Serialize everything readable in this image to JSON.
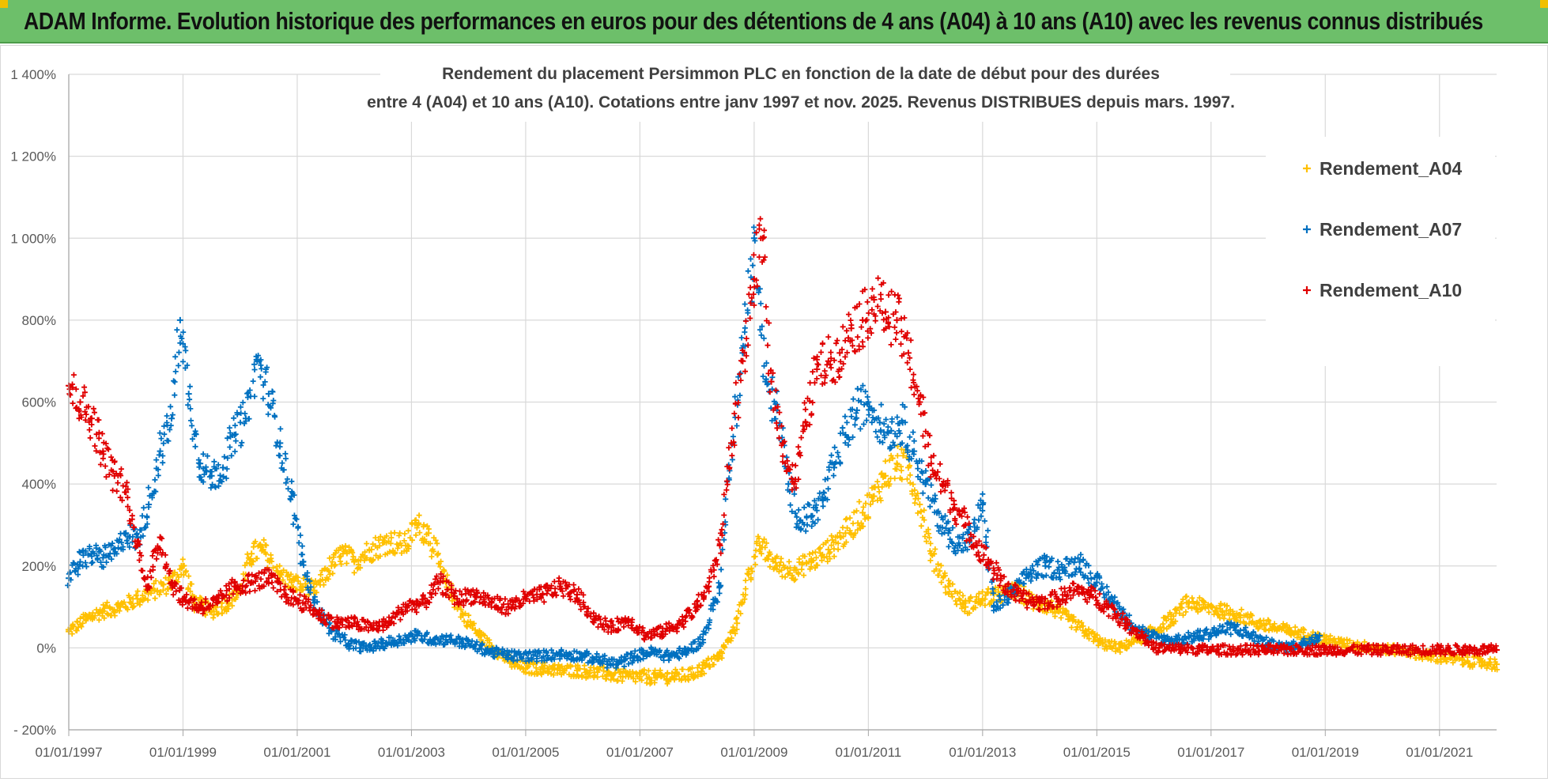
{
  "banner": {
    "title": "ADAM Informe. Evolution historique des performances en euros pour des détentions de 4 ans (A04) à 10 ans (A10) avec les revenus connus distribués"
  },
  "chart_data": {
    "type": "scatter",
    "title_line1": "Rendement du placement Persimmon PLC en fonction de la date de début pour des durées",
    "title_line2": "entre 4 (A04) et 10 ans (A10).  Cotations entre janv 1997 et nov. 2025. Revenus DISTRIBUES depuis mars. 1997.",
    "ylim": [
      -200,
      1400
    ],
    "yticks": [
      -200,
      0,
      200,
      400,
      600,
      800,
      1000,
      1200,
      1400
    ],
    "ytick_labels": [
      "- 200%",
      "0%",
      "200%",
      "400%",
      "600%",
      "800%",
      "1 000%",
      "1 200%",
      "1 400%"
    ],
    "xlim": [
      1997.0,
      2022.0
    ],
    "xticks": [
      1997,
      1999,
      2001,
      2003,
      2005,
      2007,
      2009,
      2011,
      2013,
      2015,
      2017,
      2019,
      2021
    ],
    "xtick_labels": [
      "01/01/1997",
      "01/01/1999",
      "01/01/2001",
      "01/01/2003",
      "01/01/2005",
      "01/01/2007",
      "01/01/2009",
      "01/01/2011",
      "01/01/2013",
      "01/01/2015",
      "01/01/2017",
      "01/01/2019",
      "01/01/2021"
    ],
    "grid": true,
    "legend_position": "top-right",
    "series": [
      {
        "name": "Rendement_A04",
        "color": "#ffc000",
        "x": [
          1997.0,
          1997.3,
          1997.6,
          1997.9,
          1998.2,
          1998.5,
          1998.8,
          1999.0,
          1999.2,
          1999.5,
          1999.8,
          2000.0,
          2000.2,
          2000.4,
          2000.7,
          2000.9,
          2001.1,
          2001.3,
          2001.6,
          2001.8,
          2002.0,
          2002.3,
          2002.6,
          2002.9,
          2003.1,
          2003.3,
          2003.6,
          2003.9,
          2004.2,
          2004.5,
          2004.8,
          2005.0,
          2005.3,
          2005.6,
          2005.9,
          2006.2,
          2006.5,
          2006.8,
          2007.0,
          2007.3,
          2007.6,
          2007.9,
          2008.1,
          2008.4,
          2008.7,
          2008.9,
          2009.1,
          2009.4,
          2009.7,
          2010.0,
          2010.3,
          2010.6,
          2010.9,
          2011.1,
          2011.3,
          2011.5,
          2011.7,
          2011.9,
          2012.1,
          2012.4,
          2012.7,
          2013.0,
          2013.3,
          2013.6,
          2013.9,
          2014.2,
          2014.5,
          2014.8,
          2015.1,
          2015.4,
          2015.7,
          2016.0,
          2016.3,
          2016.6,
          2016.9,
          2017.2,
          2017.5,
          2017.8,
          2018.1,
          2018.4,
          2018.7,
          2019.0,
          2019.3,
          2019.6,
          2019.9,
          2020.2,
          2020.5,
          2020.8,
          2021.1,
          2021.4,
          2021.7,
          2022.0
        ],
        "y": [
          40,
          70,
          90,
          100,
          120,
          140,
          160,
          200,
          110,
          90,
          110,
          140,
          230,
          240,
          180,
          160,
          150,
          140,
          200,
          230,
          210,
          240,
          260,
          250,
          300,
          280,
          160,
          80,
          30,
          -10,
          -40,
          -50,
          -50,
          -55,
          -55,
          -60,
          -65,
          -70,
          -70,
          -72,
          -70,
          -65,
          -50,
          -20,
          60,
          180,
          250,
          200,
          190,
          210,
          240,
          280,
          330,
          370,
          420,
          450,
          440,
          350,
          230,
          150,
          100,
          120,
          130,
          140,
          110,
          100,
          70,
          40,
          10,
          0,
          20,
          40,
          70,
          110,
          100,
          90,
          80,
          60,
          50,
          40,
          30,
          20,
          10,
          5,
          0,
          -5,
          -10,
          -20,
          -25,
          -30,
          -35,
          -40
        ]
      },
      {
        "name": "Rendement_A07",
        "color": "#0070c0",
        "x": [
          1997.0,
          1997.2,
          1997.4,
          1997.6,
          1997.8,
          1998.0,
          1998.2,
          1998.4,
          1998.6,
          1998.8,
          1998.95,
          1999.1,
          1999.3,
          1999.5,
          1999.7,
          1999.9,
          2000.1,
          2000.3,
          2000.5,
          2000.7,
          2000.9,
          2001.1,
          2001.3,
          2001.6,
          2001.9,
          2002.2,
          2002.5,
          2002.8,
          2003.1,
          2003.4,
          2003.7,
          2004.0,
          2004.4,
          2004.8,
          2005.2,
          2005.6,
          2006.0,
          2006.3,
          2006.6,
          2006.9,
          2007.2,
          2007.5,
          2007.8,
          2008.1,
          2008.4,
          2008.6,
          2008.8,
          2009.0,
          2009.2,
          2009.4,
          2009.6,
          2009.8,
          2010.0,
          2010.2,
          2010.4,
          2010.6,
          2010.8,
          2011.0,
          2011.2,
          2011.4,
          2011.6,
          2011.8,
          2012.0,
          2012.2,
          2012.4,
          2012.6,
          2012.8,
          2013.0,
          2013.2,
          2013.5,
          2013.8,
          2014.1,
          2014.4,
          2014.7,
          2015.0,
          2015.3,
          2015.6,
          2015.9,
          2016.2,
          2016.5,
          2016.8,
          2017.1,
          2017.4,
          2017.7,
          2018.0,
          2018.3,
          2018.6,
          2018.9
        ],
        "y": [
          170,
          210,
          230,
          220,
          230,
          280,
          260,
          350,
          480,
          560,
          800,
          620,
          450,
          420,
          440,
          520,
          560,
          700,
          620,
          500,
          370,
          210,
          110,
          40,
          10,
          0,
          10,
          20,
          30,
          20,
          20,
          10,
          -10,
          -20,
          -20,
          -15,
          -20,
          -30,
          -40,
          -20,
          -10,
          -20,
          -10,
          20,
          150,
          500,
          720,
          1000,
          650,
          580,
          400,
          310,
          320,
          360,
          440,
          520,
          580,
          600,
          550,
          530,
          550,
          480,
          400,
          330,
          280,
          250,
          270,
          350,
          100,
          130,
          180,
          200,
          190,
          210,
          160,
          110,
          60,
          30,
          20,
          20,
          30,
          40,
          50,
          30,
          10,
          0,
          10,
          30
        ]
      },
      {
        "name": "Rendement_A10",
        "color": "#e00000",
        "x": [
          1997.0,
          1997.2,
          1997.4,
          1997.6,
          1997.8,
          1998.0,
          1998.2,
          1998.4,
          1998.6,
          1998.8,
          1999.0,
          1999.3,
          1999.6,
          1999.9,
          2000.2,
          2000.5,
          2000.8,
          2001.1,
          2001.4,
          2001.7,
          2002.0,
          2002.3,
          2002.6,
          2002.9,
          2003.2,
          2003.5,
          2003.8,
          2004.1,
          2004.4,
          2004.7,
          2005.0,
          2005.3,
          2005.6,
          2005.9,
          2006.2,
          2006.5,
          2006.8,
          2007.1,
          2007.4,
          2007.7,
          2008.0,
          2008.2,
          2008.4,
          2008.6,
          2008.8,
          2009.0,
          2009.15,
          2009.3,
          2009.5,
          2009.7,
          2009.9,
          2010.1,
          2010.3,
          2010.5,
          2010.7,
          2010.9,
          2011.1,
          2011.3,
          2011.5,
          2011.7,
          2011.9,
          2012.1,
          2012.3,
          2012.5,
          2012.7,
          2012.9,
          2013.1,
          2013.4,
          2013.7,
          2014.0,
          2014.3,
          2014.6,
          2014.9,
          2015.2,
          2015.5,
          2015.8,
          2016.0,
          2017.0,
          2018.0,
          2019.0,
          2020.0,
          2021.0,
          2022.0
        ],
        "y": [
          640,
          600,
          560,
          480,
          420,
          380,
          250,
          150,
          270,
          160,
          120,
          100,
          110,
          150,
          160,
          170,
          130,
          110,
          80,
          60,
          60,
          50,
          60,
          100,
          110,
          160,
          120,
          130,
          110,
          100,
          120,
          130,
          150,
          130,
          70,
          50,
          70,
          30,
          40,
          60,
          100,
          150,
          250,
          500,
          700,
          900,
          1000,
          650,
          500,
          400,
          550,
          680,
          700,
          720,
          780,
          800,
          850,
          820,
          800,
          720,
          600,
          450,
          400,
          350,
          300,
          250,
          210,
          150,
          120,
          110,
          120,
          140,
          130,
          100,
          60,
          30,
          0,
          -5,
          -5,
          -5,
          -5,
          -5,
          -5
        ]
      }
    ]
  }
}
